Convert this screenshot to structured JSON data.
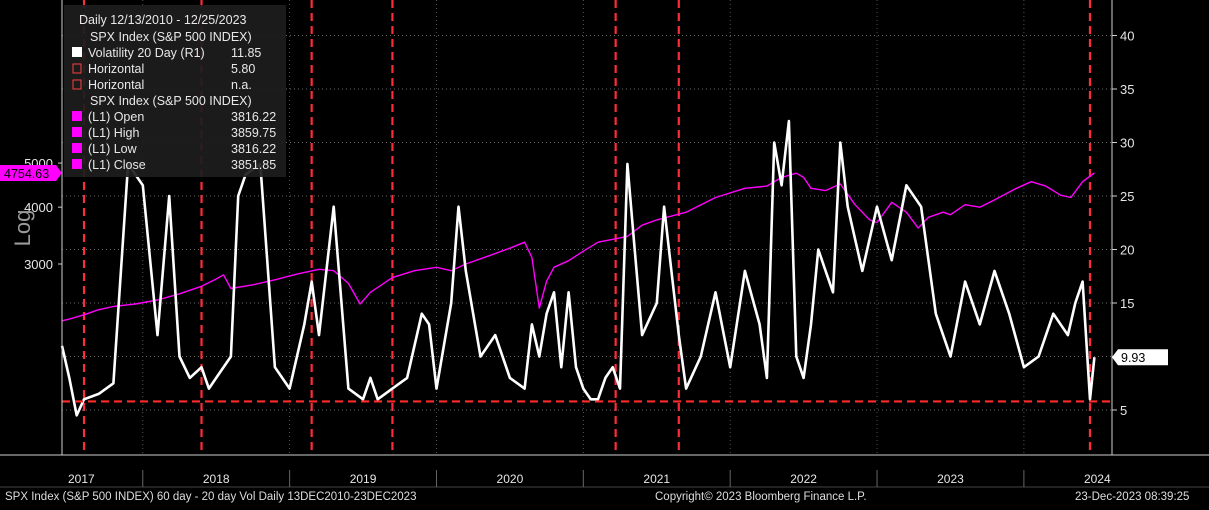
{
  "chart_data": {
    "type": "line",
    "scale_label": "Log",
    "legend": {
      "header": "Daily 12/13/2010 - 12/25/2023",
      "rows": [
        {
          "label": "SPX Index (S&P 500 INDEX)",
          "value": "",
          "swatch": "none"
        },
        {
          "label": "Volatility 20 Day  (R1)",
          "value": "11.85",
          "swatch": "#ffffff"
        },
        {
          "label": "Horizontal",
          "value": "5.80",
          "swatch": "outline"
        },
        {
          "label": "Horizontal",
          "value": "n.a.",
          "swatch": "outline"
        },
        {
          "label": "SPX Index (S&P 500 INDEX)",
          "value": "",
          "swatch": "none"
        },
        {
          "label": "(L1) Open",
          "value": "3816.22",
          "swatch": "#ff00ff"
        },
        {
          "label": "(L1) High",
          "value": "3859.75",
          "swatch": "#ff00ff"
        },
        {
          "label": "(L1) Low",
          "value": "3816.22",
          "swatch": "#ff00ff"
        },
        {
          "label": "(L1) Close",
          "value": "3851.85",
          "swatch": "#ff00ff"
        }
      ]
    },
    "left_axis": {
      "ticks": [
        "5000",
        "4000",
        "3000"
      ],
      "tick_values": [
        5000,
        4000,
        3000
      ],
      "log": true,
      "last_value_label": "4754.63",
      "last_value": 4754.63
    },
    "right_axis": {
      "ticks": [
        "40",
        "35",
        "30",
        "25",
        "20",
        "15",
        "10",
        "5"
      ],
      "tick_values": [
        40,
        35,
        30,
        25,
        20,
        15,
        10,
        5
      ],
      "last_value_label": "9.93",
      "last_value": 9.93
    },
    "x_axis": {
      "labels": [
        "2017",
        "2018",
        "2019",
        "2020",
        "2021",
        "2022",
        "2023",
        "2024"
      ],
      "label_x": [
        2017.0,
        2018.0,
        2019.0,
        2020.0,
        2021.0,
        2022.0,
        2023.0,
        2024.0
      ],
      "range": [
        2016.95,
        2024.1
      ]
    },
    "horizontal_line": {
      "value": 5.8,
      "color": "#ff2a2a"
    },
    "vertical_lines": [
      2017.1,
      2017.9,
      2018.65,
      2019.2,
      2020.72,
      2021.15,
      2023.95
    ],
    "series": [
      {
        "name": "SPX Index (S&P 500 INDEX)",
        "axis": "left",
        "color": "#ff00ff",
        "x": [
          2016.95,
          2017.0,
          2017.1,
          2017.2,
          2017.3,
          2017.45,
          2017.6,
          2017.75,
          2017.9,
          2018.0,
          2018.05,
          2018.1,
          2018.25,
          2018.4,
          2018.55,
          2018.7,
          2018.8,
          2018.9,
          2018.98,
          2019.05,
          2019.2,
          2019.35,
          2019.5,
          2019.6,
          2019.7,
          2019.85,
          2020.0,
          2020.1,
          2020.15,
          2020.2,
          2020.25,
          2020.3,
          2020.4,
          2020.5,
          2020.6,
          2020.7,
          2020.8,
          2020.9,
          2021.0,
          2021.2,
          2021.4,
          2021.6,
          2021.75,
          2021.85,
          2021.95,
          2022.0,
          2022.05,
          2022.15,
          2022.25,
          2022.35,
          2022.45,
          2022.5,
          2022.6,
          2022.7,
          2022.78,
          2022.85,
          2022.95,
          2023.0,
          2023.1,
          2023.2,
          2023.3,
          2023.45,
          2023.55,
          2023.65,
          2023.75,
          2023.82,
          2023.9,
          2023.98
        ],
        "values": [
          2250,
          2270,
          2320,
          2380,
          2420,
          2450,
          2500,
          2580,
          2680,
          2780,
          2840,
          2650,
          2700,
          2770,
          2850,
          2920,
          2900,
          2720,
          2450,
          2600,
          2800,
          2900,
          2950,
          2900,
          3000,
          3120,
          3250,
          3350,
          3100,
          2400,
          2750,
          2950,
          3050,
          3200,
          3350,
          3400,
          3450,
          3650,
          3750,
          3900,
          4200,
          4400,
          4450,
          4650,
          4750,
          4650,
          4400,
          4350,
          4500,
          4050,
          3750,
          3700,
          4100,
          3900,
          3600,
          3800,
          3900,
          3850,
          4050,
          4000,
          4150,
          4400,
          4550,
          4450,
          4250,
          4200,
          4550,
          4754.63
        ]
      },
      {
        "name": "Volatility 20 Day",
        "axis": "right",
        "color": "#ffffff",
        "x": [
          2016.95,
          2017.0,
          2017.05,
          2017.1,
          2017.2,
          2017.3,
          2017.4,
          2017.5,
          2017.6,
          2017.68,
          2017.75,
          2017.82,
          2017.9,
          2017.95,
          2018.0,
          2018.1,
          2018.15,
          2018.2,
          2018.3,
          2018.4,
          2018.5,
          2018.6,
          2018.65,
          2018.7,
          2018.8,
          2018.9,
          2019.0,
          2019.05,
          2019.1,
          2019.2,
          2019.3,
          2019.4,
          2019.45,
          2019.5,
          2019.6,
          2019.65,
          2019.7,
          2019.8,
          2019.9,
          2020.0,
          2020.1,
          2020.15,
          2020.2,
          2020.25,
          2020.3,
          2020.35,
          2020.4,
          2020.45,
          2020.5,
          2020.55,
          2020.6,
          2020.65,
          2020.7,
          2020.75,
          2020.8,
          2020.85,
          2020.9,
          2021.0,
          2021.05,
          2021.1,
          2021.15,
          2021.2,
          2021.3,
          2021.4,
          2021.5,
          2021.6,
          2021.7,
          2021.75,
          2021.8,
          2021.85,
          2021.9,
          2021.95,
          2022.0,
          2022.05,
          2022.1,
          2022.15,
          2022.2,
          2022.25,
          2022.3,
          2022.4,
          2022.5,
          2022.6,
          2022.7,
          2022.8,
          2022.9,
          2023.0,
          2023.1,
          2023.2,
          2023.3,
          2023.4,
          2023.5,
          2023.6,
          2023.7,
          2023.8,
          2023.85,
          2023.9,
          2023.95,
          2023.98
        ],
        "values": [
          11,
          8,
          4.5,
          6,
          6.5,
          7.5,
          28,
          26,
          12,
          25,
          10,
          8,
          9,
          7,
          8,
          10,
          25,
          27,
          28,
          9,
          7,
          13,
          17,
          12,
          24,
          7,
          6,
          8,
          6,
          7,
          8,
          14,
          13,
          7,
          15,
          24,
          18,
          10,
          12,
          8,
          7,
          13,
          10,
          14,
          16,
          9,
          16,
          9,
          7,
          6,
          6,
          8,
          9,
          7,
          28,
          20,
          12,
          15,
          24,
          18,
          12,
          7,
          10,
          16,
          9,
          18,
          13,
          8,
          30,
          26,
          32,
          10,
          8,
          13,
          20,
          18,
          16,
          30,
          24,
          18,
          24,
          19,
          26,
          24,
          14,
          10,
          17,
          13,
          18,
          14,
          9,
          10,
          14,
          12,
          15,
          17,
          6,
          9.93
        ]
      }
    ]
  },
  "footer": {
    "left": "SPX Index (S&P 500 INDEX) 60 day - 20 day Vol  Daily 13DEC2010-23DEC2023",
    "center": "Copyright© 2023 Bloomberg Finance L.P.",
    "right": "23-Dec-2023 08:39:25"
  }
}
